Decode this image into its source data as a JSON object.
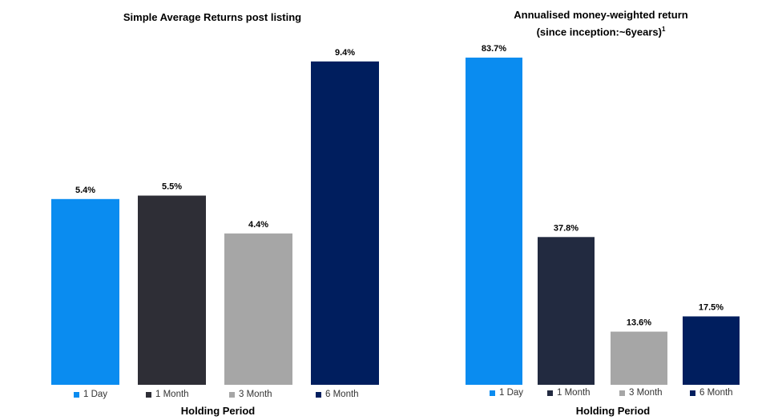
{
  "chart_data": [
    {
      "type": "bar",
      "title": "Simple Average Returns post listing",
      "xlabel": "Holding Period",
      "categories": [
        "1 Day",
        "1 Month",
        "3 Month",
        "6 Month"
      ],
      "values": [
        5.4,
        5.5,
        4.4,
        9.4
      ],
      "value_labels": [
        "5.4%",
        "5.5%",
        "4.4%",
        "9.4%"
      ],
      "colors": [
        "#0A8CF0",
        "#2E2E36",
        "#A6A6A6",
        "#001E5E"
      ],
      "ylim": [
        0,
        10
      ],
      "grid": false,
      "legend_position": "bottom"
    },
    {
      "type": "bar",
      "title": "Annualised money-weighted return",
      "subtitle": "(since inception:~6years)",
      "subtitle_superscript": "1",
      "xlabel": "Holding Period",
      "categories": [
        "1 Day",
        "1 Month",
        "3 Month",
        "6 Month"
      ],
      "values": [
        83.7,
        37.8,
        13.6,
        17.5
      ],
      "value_labels": [
        "83.7%",
        "37.8%",
        "13.6%",
        "17.5%"
      ],
      "colors": [
        "#0A8CF0",
        "#222A40",
        "#A6A6A6",
        "#001E5E"
      ],
      "ylim": [
        0,
        88
      ],
      "grid": false,
      "legend_position": "bottom"
    }
  ]
}
